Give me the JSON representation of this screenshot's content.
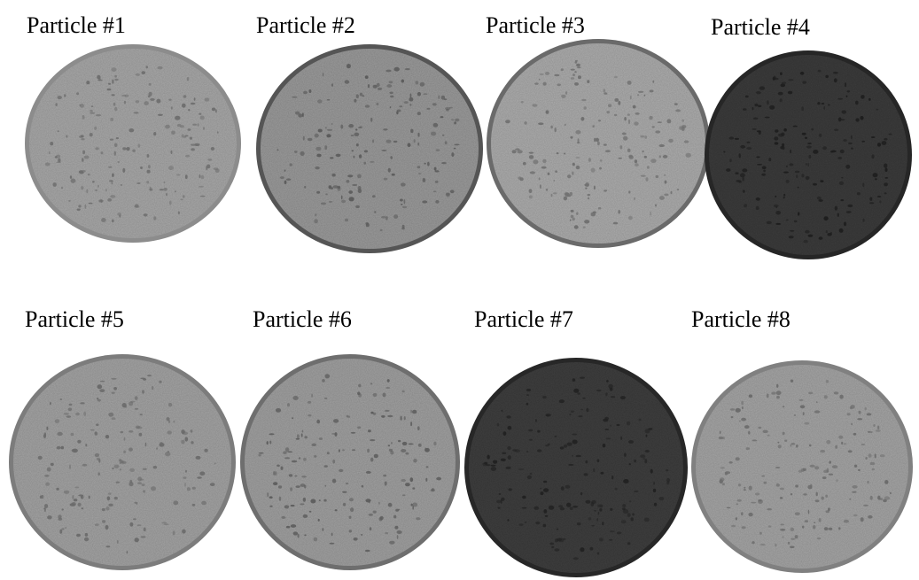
{
  "particles": [
    {
      "label": "Particle #1"
    },
    {
      "label": "Particle #2"
    },
    {
      "label": "Particle #3"
    },
    {
      "label": "Particle #4"
    },
    {
      "label": "Particle #5"
    },
    {
      "label": "Particle #6"
    },
    {
      "label": "Particle #7"
    },
    {
      "label": "Particle #8"
    }
  ]
}
